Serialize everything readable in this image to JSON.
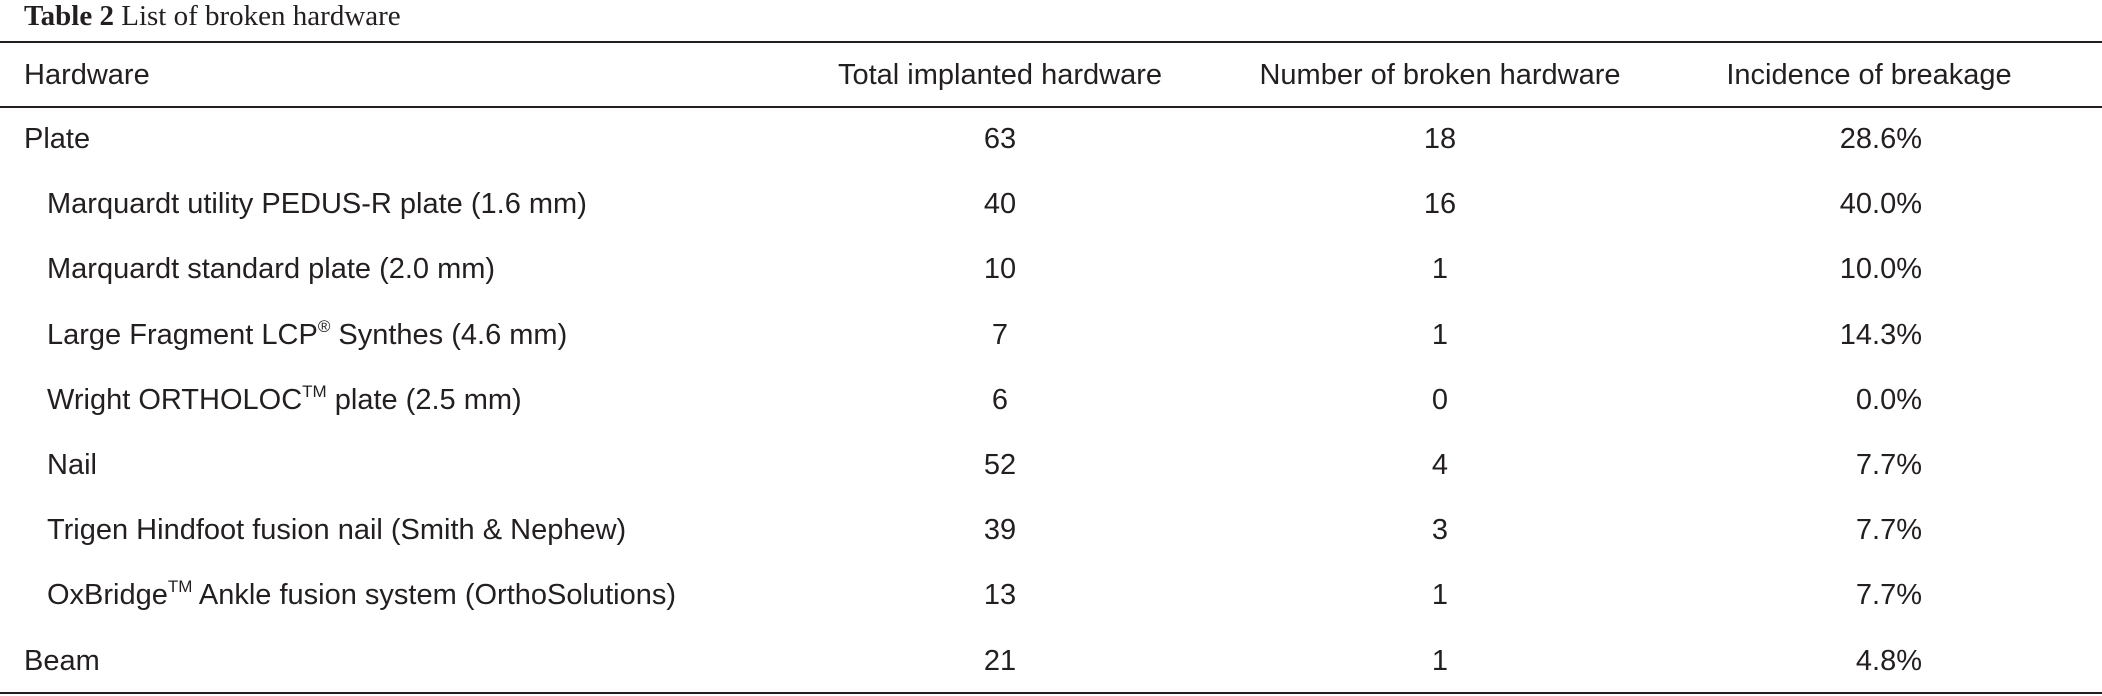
{
  "caption": {
    "label": "Table 2",
    "title": "List of broken hardware"
  },
  "table": {
    "headers": [
      "Hardware",
      "Total implanted hardware",
      "Number of broken hardware",
      "Incidence of breakage"
    ],
    "rows": [
      {
        "label": "Plate",
        "indent": false,
        "total": 63,
        "broken": 18,
        "incidence": "28.6%"
      },
      {
        "label": "Marquardt utility PEDUS-R plate (1.6 mm)",
        "indent": true,
        "total": 40,
        "broken": 16,
        "incidence": "40.0%"
      },
      {
        "label": "Marquardt standard plate (2.0 mm)",
        "indent": true,
        "total": 10,
        "broken": 1,
        "incidence": "10.0%"
      },
      {
        "label": "Large Fragment LCP",
        "sup": "®",
        "label_after": " Synthes (4.6 mm)",
        "indent": true,
        "total": 7,
        "broken": 1,
        "incidence": "14.3%"
      },
      {
        "label": "Wright ORTHOLOC",
        "sup": "TM",
        "label_after": " plate (2.5 mm)",
        "indent": true,
        "total": 6,
        "broken": 0,
        "incidence": "0.0%"
      },
      {
        "label": "Nail",
        "indent": true,
        "total": 52,
        "broken": 4,
        "incidence": "7.7%"
      },
      {
        "label": "Trigen Hindfoot fusion nail (Smith & Nephew)",
        "indent": true,
        "total": 39,
        "broken": 3,
        "incidence": "7.7%"
      },
      {
        "label": "OxBridge",
        "sup": "TM",
        "label_after": " Ankle fusion system (OrthoSolutions)",
        "indent": true,
        "total": 13,
        "broken": 1,
        "incidence": "7.7%"
      },
      {
        "label": "Beam",
        "indent": false,
        "total": 21,
        "broken": 1,
        "incidence": "4.8%"
      }
    ]
  }
}
